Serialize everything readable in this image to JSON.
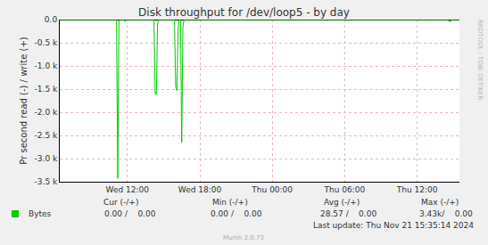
{
  "chart_data": {
    "type": "line",
    "title": "Disk throughput for /dev/loop5 - by day",
    "y_label": "Pr second read (-) / write (+)",
    "side_text": "RRDTOOL / TOBI OETIKER",
    "x": [
      6.4,
      11.1,
      11.2,
      11.3,
      11.4,
      11.7,
      11.8,
      11.9,
      14.2,
      14.3,
      14.4,
      14.5,
      14.6,
      15.9,
      16.0,
      16.1,
      16.2,
      16.3,
      16.4,
      16.5,
      16.6,
      16.7,
      38.5,
      38.7,
      38.9,
      39.5
    ],
    "series": [
      {
        "name": "Bytes",
        "color": "#00cc00",
        "values": [
          0,
          0,
          -3430,
          -20,
          0,
          0,
          -40,
          0,
          0,
          -1600,
          -1620,
          -100,
          0,
          0,
          -1450,
          -1530,
          -200,
          0,
          0,
          -2650,
          -150,
          0,
          0,
          -50,
          0,
          0
        ]
      }
    ],
    "xlim": [
      6.4,
      39.5
    ],
    "xticks": [
      {
        "value": 12,
        "label": "Wed 12:00"
      },
      {
        "value": 18,
        "label": "Wed 18:00"
      },
      {
        "value": 24,
        "label": "Thu 00:00"
      },
      {
        "value": 30,
        "label": "Thu 06:00"
      },
      {
        "value": 36,
        "label": "Thu 12:00"
      }
    ],
    "ylim": [
      -3500,
      0
    ],
    "yticks": [
      {
        "value": -3500,
        "label": "-3.5 k"
      },
      {
        "value": -3000,
        "label": "-3.0 k"
      },
      {
        "value": -2500,
        "label": "-2.5 k"
      },
      {
        "value": -2000,
        "label": "-2.0 k"
      },
      {
        "value": -1500,
        "label": "-1.5 k"
      },
      {
        "value": -1000,
        "label": "-1.0 k"
      },
      {
        "value": -500,
        "label": "-0.5 k"
      },
      {
        "value": 0,
        "label": "0.0"
      }
    ],
    "grid": true,
    "stats": {
      "columns": [
        "Cur (-/+)",
        "Min (-/+)",
        "Avg (-/+)",
        "Max (-/+)"
      ],
      "rows": [
        {
          "name": "Bytes",
          "color": "#00cc00",
          "cells": [
            "0.00 /    0.00",
            "0.00 /    0.00",
            "28.57 /    0.00",
            "3.43k/    0.00"
          ]
        }
      ]
    },
    "last_update": "Last update: Thu Nov 21 15:35:14 2024",
    "footer": "Munin 2.0.73"
  }
}
